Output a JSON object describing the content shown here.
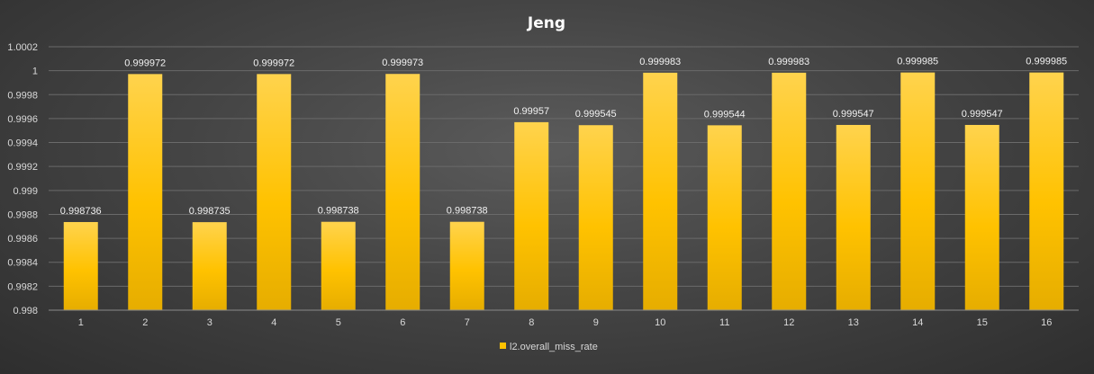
{
  "chart_data": {
    "type": "bar",
    "title": "Jeng",
    "xlabel": "",
    "ylabel": "",
    "categories": [
      "1",
      "2",
      "3",
      "4",
      "5",
      "6",
      "7",
      "8",
      "9",
      "10",
      "11",
      "12",
      "13",
      "14",
      "15",
      "16"
    ],
    "series": [
      {
        "name": "l2.overall_miss_rate",
        "values": [
          0.998736,
          0.999972,
          0.998735,
          0.999972,
          0.998738,
          0.999973,
          0.998738,
          0.99957,
          0.999545,
          0.999983,
          0.999544,
          0.999983,
          0.999547,
          0.999985,
          0.999547,
          0.999985
        ],
        "labels": [
          "0.998736",
          "0.999972",
          "0.998735",
          "0.999972",
          "0.998738",
          "0.999973",
          "0.998738",
          "0.99957",
          "0.999545",
          "0.999983",
          "0.999544",
          "0.999983",
          "0.999547",
          "0.999985",
          "0.999547",
          "0.999985"
        ]
      }
    ],
    "ylim": [
      0.998,
      1.0002
    ],
    "yticks": [
      "0.998",
      "0.9982",
      "0.9984",
      "0.9986",
      "0.9988",
      "0.999",
      "0.9992",
      "0.9994",
      "0.9996",
      "0.9998",
      "1",
      "1.0002"
    ],
    "grid": true,
    "legend_position": "bottom",
    "colors": {
      "bar_top": "#ffd34d",
      "bar_mid": "#ffc200",
      "bar_bottom": "#e6ad00",
      "grid": "#6a6a6a"
    }
  }
}
